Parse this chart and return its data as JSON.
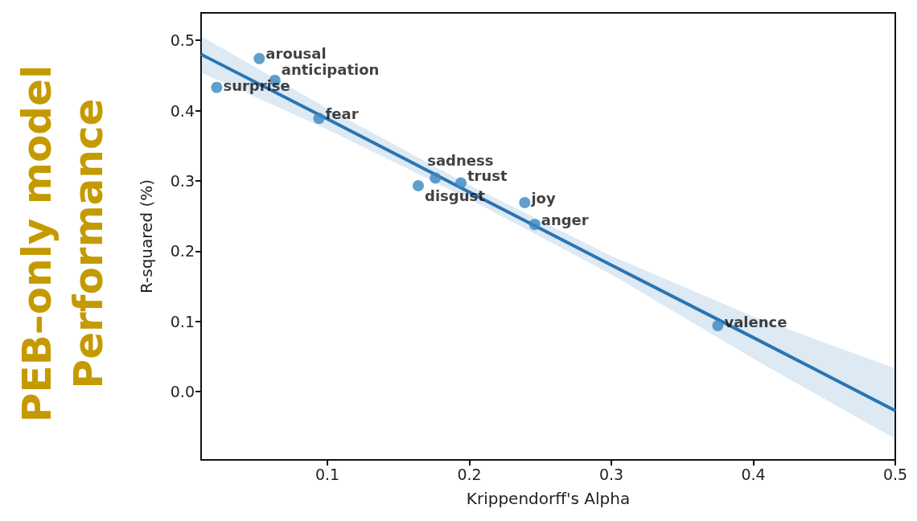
{
  "chart_data": {
    "type": "scatter",
    "title": "PEB–only model\nPerformance",
    "xlabel": "Krippendorff's Alpha",
    "ylabel": "R-squared (%)",
    "xlim": [
      0.011,
      0.5
    ],
    "xticks": [
      0.1,
      0.2,
      0.3,
      0.4,
      0.5
    ],
    "ylim": [
      -0.097,
      0.539
    ],
    "yticks": [
      {
        "value": 0,
        "label": "0.0"
      },
      0.1,
      0.2,
      0.3,
      0.4,
      0.5
    ],
    "grid": false,
    "marker": "circle",
    "series": [
      {
        "type": "scatter",
        "color": "#3a87c0",
        "x": [
          0.052,
          0.063,
          0.022,
          0.094,
          0.176,
          0.194,
          0.164,
          0.239,
          0.246,
          0.375
        ],
        "values": [
          0.474,
          0.443,
          0.433,
          0.389,
          0.304,
          0.297,
          0.293,
          0.269,
          0.238,
          0.094
        ]
      },
      {
        "type": "line",
        "marker": "none",
        "color": "#2a74b3",
        "x": [
          0.011,
          0.1,
          0.2,
          0.3,
          0.4,
          0.5
        ],
        "values": [
          0.48,
          0.388,
          0.284,
          0.18,
          0.077,
          -0.027
        ],
        "lower": [
          0.454,
          0.373,
          0.274,
          0.167,
          0.047,
          -0.067
        ],
        "upper": [
          0.506,
          0.403,
          0.294,
          0.193,
          0.107,
          0.033
        ]
      }
    ],
    "annotations": [
      {
        "text": "arousal",
        "x": 0.052,
        "y": 0.474
      },
      {
        "text": "anticipation",
        "x": 0.063,
        "y": 0.443
      },
      {
        "text": "surprise",
        "x": 0.022,
        "y": 0.433
      },
      {
        "text": "fear",
        "x": 0.094,
        "y": 0.389
      },
      {
        "text": "sadness",
        "x": 0.176,
        "y": 0.304
      },
      {
        "text": "trust",
        "x": 0.194,
        "y": 0.297
      },
      {
        "text": "disgust",
        "x": 0.164,
        "y": 0.293
      },
      {
        "text": "joy",
        "x": 0.239,
        "y": 0.269
      },
      {
        "text": "anger",
        "x": 0.246,
        "y": 0.238
      },
      {
        "text": "valence",
        "x": 0.375,
        "y": 0.094
      }
    ]
  }
}
